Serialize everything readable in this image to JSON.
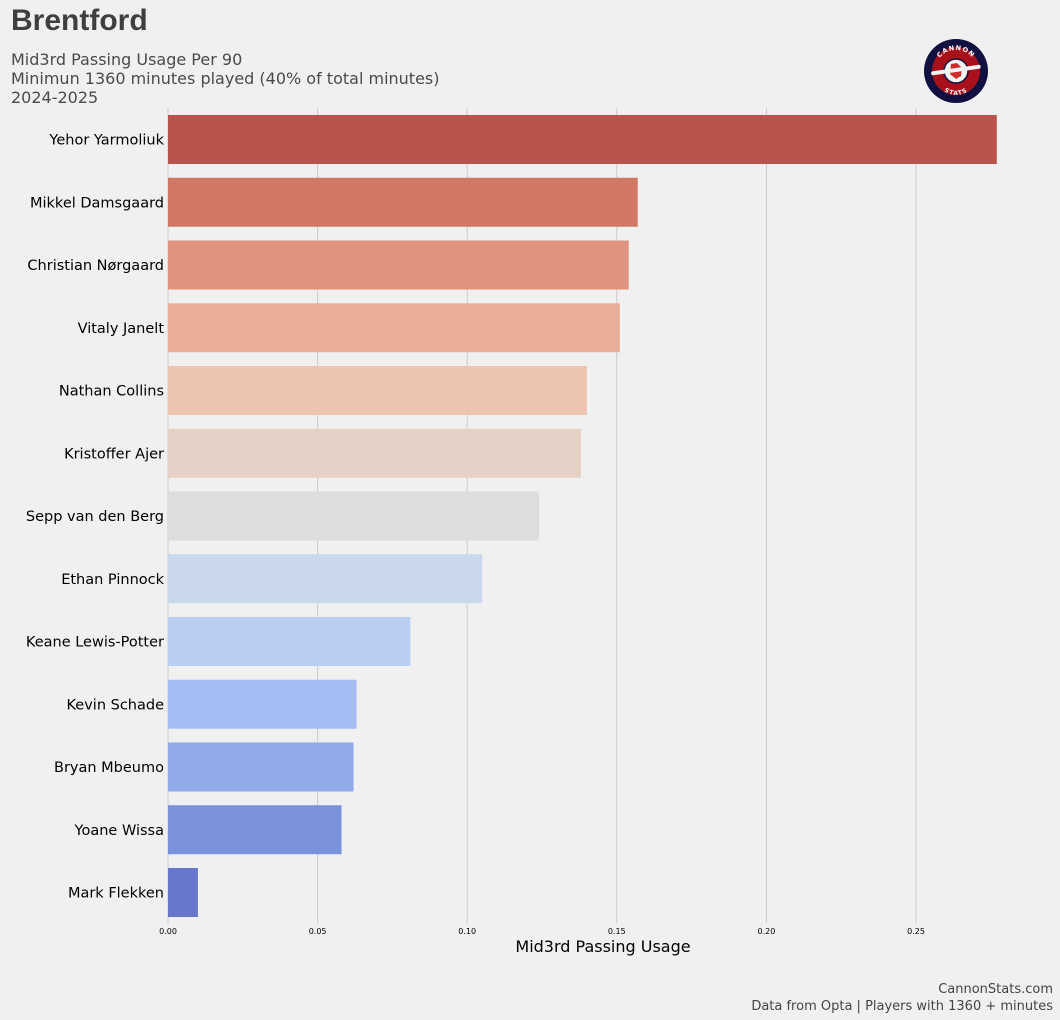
{
  "header": {
    "team": "Brentford",
    "subtitle_line1": "Mid3rd Passing Usage Per 90",
    "subtitle_line2": "Minimun 1360 minutes played (40% of total minutes)",
    "subtitle_line3": "2024-2025",
    "logo_text_top": "CANNON",
    "logo_text_bottom": "STATS"
  },
  "footer": {
    "line1": "CannonStats.com",
    "line2": "Data from Opta | Players with 1360 + minutes"
  },
  "chart_data": {
    "type": "bar",
    "orientation": "horizontal",
    "xlabel": "Mid3rd Passing Usage",
    "ylabel": "",
    "xlim": [
      0,
      0.28
    ],
    "xticks": [
      0.0,
      0.05,
      0.1,
      0.15,
      0.2,
      0.25
    ],
    "xtick_labels": [
      "0.00",
      "0.05",
      "0.10",
      "0.15",
      "0.20",
      "0.25"
    ],
    "grid": "vertical",
    "categories": [
      "Yehor Yarmoliuk",
      "Mikkel Damsgaard",
      "Christian Nørgaard",
      "Vitaly Janelt",
      "Nathan Collins",
      "Kristoffer Ajer",
      "Sepp van den Berg",
      "Ethan Pinnock",
      "Keane Lewis-Potter",
      "Kevin Schade",
      "Bryan Mbeumo",
      "Yoane Wissa",
      "Mark Flekken"
    ],
    "values": [
      0.277,
      0.157,
      0.154,
      0.151,
      0.14,
      0.138,
      0.124,
      0.105,
      0.081,
      0.063,
      0.062,
      0.058,
      0.01
    ],
    "colors": [
      "#b9534c",
      "#d07863",
      "#e0937e",
      "#e9ae98",
      "#edc3b2",
      "#e6d1c7",
      "#dcdedc",
      "#cbd7ea",
      "#bacdf2",
      "#a4bdf2",
      "#91a9ea",
      "#7a92dc",
      "#6677cc"
    ]
  }
}
